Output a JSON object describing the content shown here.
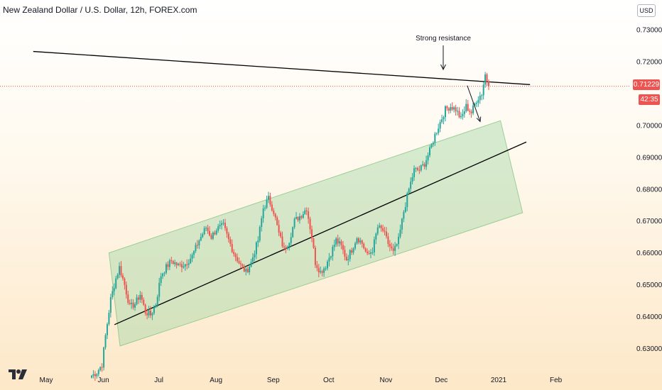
{
  "header": {
    "title": "New Zealand Dollar / U.S. Dollar, 12h, FOREX.com"
  },
  "currency_button": "USD",
  "price_tag": "0.71229",
  "countdown": "42:35",
  "annotation": "Strong resistance",
  "chart_data": {
    "type": "candlestick",
    "symbol": "NZDUSD",
    "interval": "12h",
    "ylim": [
      0.6205,
      0.7345
    ],
    "y_ticks": [
      "0.73000",
      "0.72000",
      "0.70000",
      "0.69000",
      "0.68000",
      "0.67000",
      "0.66000",
      "0.65000",
      "0.64000",
      "0.63000"
    ],
    "x_ticks": [
      "May",
      "Jun",
      "Jul",
      "Aug",
      "Sep",
      "Oct",
      "Nov",
      "Dec",
      "2021",
      "Feb"
    ],
    "last_price": 0.71229,
    "colors": {
      "up": "#26a69a",
      "down": "#ef5350",
      "channel": "#a5d6a7",
      "line": "#000000"
    },
    "price_anchors": [
      [
        0,
        0.6215
      ],
      [
        3,
        0.6225
      ],
      [
        6,
        0.625
      ],
      [
        8,
        0.634
      ],
      [
        11,
        0.6455
      ],
      [
        14,
        0.652
      ],
      [
        16,
        0.6555
      ],
      [
        19,
        0.65
      ],
      [
        22,
        0.643
      ],
      [
        25,
        0.644
      ],
      [
        28,
        0.647
      ],
      [
        31,
        0.6415
      ],
      [
        34,
        0.6405
      ],
      [
        37,
        0.644
      ],
      [
        40,
        0.653
      ],
      [
        43,
        0.6555
      ],
      [
        46,
        0.6575
      ],
      [
        50,
        0.656
      ],
      [
        54,
        0.6565
      ],
      [
        58,
        0.659
      ],
      [
        62,
        0.664
      ],
      [
        66,
        0.668
      ],
      [
        69,
        0.665
      ],
      [
        72,
        0.6675
      ],
      [
        76,
        0.6685
      ],
      [
        79,
        0.664
      ],
      [
        82,
        0.66
      ],
      [
        86,
        0.656
      ],
      [
        89,
        0.654
      ],
      [
        92,
        0.657
      ],
      [
        96,
        0.664
      ],
      [
        99,
        0.674
      ],
      [
        102,
        0.677
      ],
      [
        105,
        0.673
      ],
      [
        108,
        0.666
      ],
      [
        111,
        0.661
      ],
      [
        114,
        0.664
      ],
      [
        117,
        0.67
      ],
      [
        121,
        0.672
      ],
      [
        124,
        0.674
      ],
      [
        127,
        0.665
      ],
      [
        129,
        0.657
      ],
      [
        132,
        0.654
      ],
      [
        135,
        0.656
      ],
      [
        138,
        0.66
      ],
      [
        141,
        0.664
      ],
      [
        144,
        0.662
      ],
      [
        147,
        0.658
      ],
      [
        150,
        0.661
      ],
      [
        153,
        0.665
      ],
      [
        156,
        0.663
      ],
      [
        159,
        0.659
      ],
      [
        162,
        0.661
      ],
      [
        165,
        0.668
      ],
      [
        168,
        0.667
      ],
      [
        171,
        0.663
      ],
      [
        174,
        0.66
      ],
      [
        177,
        0.664
      ],
      [
        180,
        0.673
      ],
      [
        183,
        0.68
      ],
      [
        186,
        0.686
      ],
      [
        189,
        0.686
      ],
      [
        192,
        0.688
      ],
      [
        195,
        0.692
      ],
      [
        198,
        0.697
      ],
      [
        201,
        0.701
      ],
      [
        204,
        0.705
      ],
      [
        207,
        0.706
      ],
      [
        210,
        0.705
      ],
      [
        213,
        0.702
      ],
      [
        216,
        0.706
      ],
      [
        219,
        0.704
      ],
      [
        222,
        0.708
      ],
      [
        225,
        0.71
      ],
      [
        227,
        0.716
      ],
      [
        229,
        0.7123
      ]
    ],
    "resistance_line": {
      "start": [
        "2020-04-24",
        0.7232
      ],
      "end": [
        "2021-01-18",
        0.7128
      ]
    },
    "support_line": {
      "start": [
        "2020-06-07",
        0.6375
      ],
      "end": [
        "2021-01-16",
        0.6948
      ]
    },
    "channel": {
      "upper": {
        "start": [
          "2020-06-04",
          0.66
        ],
        "end": [
          "2021-01-02",
          0.7015
        ]
      },
      "lower": {
        "start": [
          "2020-06-10",
          0.6308
        ],
        "end": [
          "2021-01-14",
          0.6726
        ]
      }
    },
    "projection_arrow": {
      "from": [
        "2020-12-15",
        0.7125
      ],
      "to": [
        "2020-12-22",
        0.7012
      ]
    },
    "annotation": {
      "text": "Strong resistance",
      "at": [
        "2020-12-02",
        0.72
      ]
    }
  }
}
